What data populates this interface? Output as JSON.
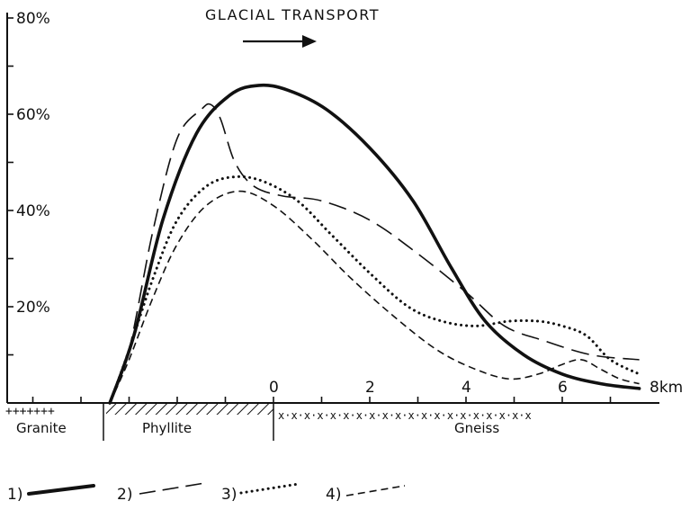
{
  "chart_data": {
    "type": "line",
    "title": "GLACIAL TRANSPORT",
    "xlabel": "",
    "ylabel": "",
    "x_unit": "km",
    "y_ticks": [
      "20%",
      "40%",
      "60%",
      "80%"
    ],
    "x_ticks": [
      "0",
      "2",
      "4",
      "6"
    ],
    "x_end_label": "8km",
    "xlim": [
      -6.9,
      7.8
    ],
    "ylim": [
      0,
      80
    ],
    "bedrock": [
      {
        "name": "Granite",
        "pattern": "+"
      },
      {
        "name": "Phyllite",
        "pattern": "hatch"
      },
      {
        "name": "Gneiss",
        "pattern": "x"
      }
    ],
    "legend": [
      "1)",
      "2)",
      "3)",
      "4)"
    ],
    "series": [
      {
        "label": "1)",
        "style": "solid",
        "points": [
          [
            -3.4,
            0
          ],
          [
            -2.9,
            14
          ],
          [
            -2.3,
            38
          ],
          [
            -1.6,
            56
          ],
          [
            -0.9,
            64
          ],
          [
            -0.3,
            66
          ],
          [
            0.3,
            65
          ],
          [
            1.1,
            61
          ],
          [
            2.0,
            53
          ],
          [
            2.9,
            42
          ],
          [
            3.7,
            28
          ],
          [
            4.4,
            17
          ],
          [
            5.2,
            10
          ],
          [
            6.0,
            6
          ],
          [
            6.8,
            4
          ],
          [
            7.6,
            3
          ]
        ]
      },
      {
        "label": "2)",
        "style": "dashed",
        "points": [
          [
            -3.4,
            0
          ],
          [
            -3.0,
            11
          ],
          [
            -2.5,
            36
          ],
          [
            -2.0,
            55
          ],
          [
            -1.5,
            61
          ],
          [
            -1.3,
            62
          ],
          [
            -1.1,
            59
          ],
          [
            -0.8,
            50
          ],
          [
            -0.4,
            45
          ],
          [
            0.2,
            43
          ],
          [
            1.0,
            42
          ],
          [
            2.0,
            38
          ],
          [
            3.0,
            31
          ],
          [
            4.0,
            23
          ],
          [
            4.8,
            16
          ],
          [
            5.6,
            13
          ],
          [
            6.6,
            10
          ],
          [
            7.6,
            9
          ]
        ]
      },
      {
        "label": "3)",
        "style": "dotted",
        "points": [
          [
            -3.4,
            0
          ],
          [
            -3.0,
            11
          ],
          [
            -2.5,
            26
          ],
          [
            -2.0,
            38
          ],
          [
            -1.4,
            45
          ],
          [
            -0.8,
            47
          ],
          [
            -0.2,
            46
          ],
          [
            0.5,
            42
          ],
          [
            1.2,
            35
          ],
          [
            2.0,
            27
          ],
          [
            2.8,
            20
          ],
          [
            3.5,
            17
          ],
          [
            4.2,
            16
          ],
          [
            4.9,
            17
          ],
          [
            5.5,
            17
          ],
          [
            6.0,
            16
          ],
          [
            6.5,
            14
          ],
          [
            7.0,
            9
          ],
          [
            7.6,
            6
          ]
        ]
      },
      {
        "label": "4)",
        "style": "short-dash",
        "points": [
          [
            -3.4,
            0
          ],
          [
            -3.0,
            9
          ],
          [
            -2.5,
            22
          ],
          [
            -2.0,
            33
          ],
          [
            -1.4,
            41
          ],
          [
            -0.7,
            44
          ],
          [
            0.0,
            41
          ],
          [
            0.8,
            34
          ],
          [
            1.6,
            26
          ],
          [
            2.5,
            18
          ],
          [
            3.4,
            11
          ],
          [
            4.2,
            7
          ],
          [
            4.9,
            5
          ],
          [
            5.5,
            6
          ],
          [
            6.0,
            8
          ],
          [
            6.4,
            9
          ],
          [
            6.8,
            7
          ],
          [
            7.2,
            5
          ],
          [
            7.6,
            4
          ]
        ]
      }
    ]
  }
}
